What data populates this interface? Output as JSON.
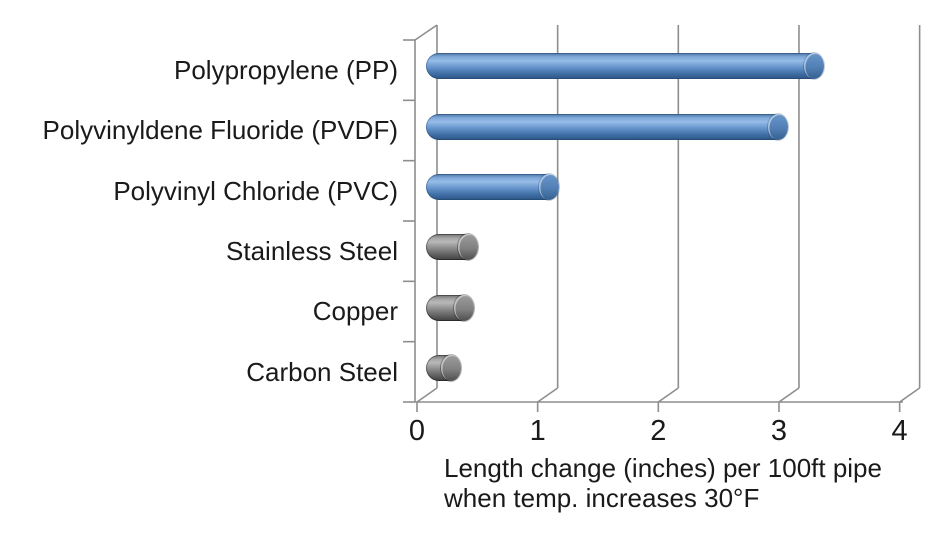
{
  "chart_data": {
    "type": "bar",
    "orientation": "horizontal",
    "style": "3d-cylinder",
    "title": "",
    "categories": [
      "Polypropylene (PP)",
      "Polyvinyldene Fluoride (PVDF)",
      "Polyvinyl Chloride (PVC)",
      "Stainless Steel",
      "Copper",
      "Carbon Steel"
    ],
    "values": [
      3.2,
      2.9,
      1.0,
      0.33,
      0.3,
      0.19
    ],
    "bar_color_keys": [
      "plastic",
      "plastic",
      "plastic",
      "metal",
      "metal",
      "metal"
    ],
    "xlabel_line1": "Length change (inches) per 100ft pipe",
    "xlabel_line2": "when temp. increases 30°F",
    "ylabel": "",
    "x_ticks": [
      0,
      1,
      2,
      3,
      4
    ],
    "xlim": [
      0,
      4
    ],
    "grid": true,
    "legend": false,
    "colors": {
      "plastic_bar": "#4f81bd",
      "metal_bar": "#808080",
      "axis_line": "#8e8e8e",
      "text": "#1a1a1a",
      "background": "#ffffff"
    }
  }
}
